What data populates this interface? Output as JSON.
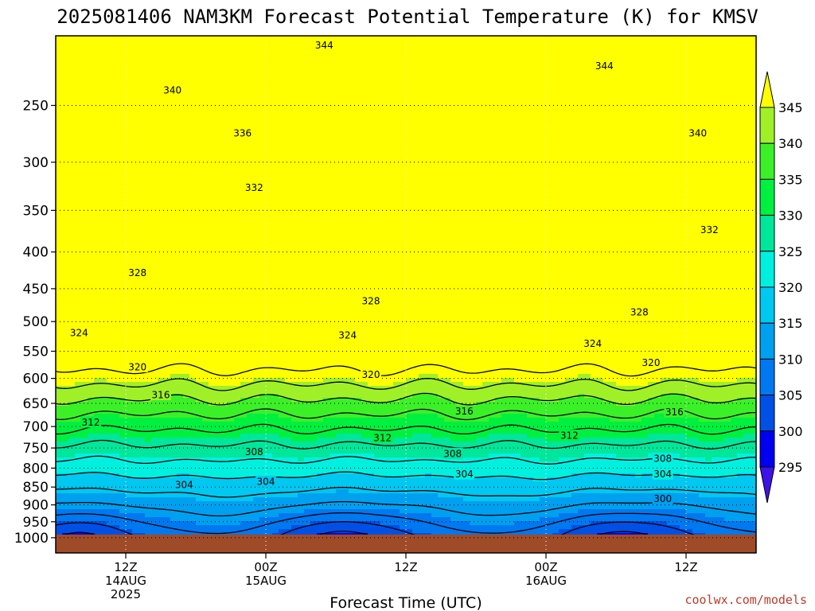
{
  "chart_data": {
    "type": "heatmap",
    "title": "2025081406 NAM3KM Forecast Potential Temperature (K) for KMSV",
    "xlabel": "Forecast Time (UTC)",
    "ylabel": "",
    "credit": "coolwx.com/models",
    "x_ticks": [
      {
        "line1": "12Z",
        "line2": "14AUG",
        "line3": "2025",
        "hour": 6
      },
      {
        "line1": "00Z",
        "line2": "15AUG",
        "line3": "",
        "hour": 18
      },
      {
        "line1": "12Z",
        "line2": "",
        "line3": "",
        "hour": 30
      },
      {
        "line1": "00Z",
        "line2": "16AUG",
        "line3": "",
        "hour": 42
      },
      {
        "line1": "12Z",
        "line2": "",
        "line3": "",
        "hour": 54
      }
    ],
    "xlim": [
      0,
      60
    ],
    "y_ticks": [
      250,
      300,
      350,
      400,
      450,
      500,
      550,
      600,
      650,
      700,
      750,
      800,
      850,
      900,
      950,
      1000
    ],
    "ylim": [
      1050,
      200
    ],
    "y_scale": "log",
    "colorbar": {
      "ticks": [
        345,
        340,
        335,
        330,
        325,
        320,
        315,
        310,
        305,
        300,
        295
      ],
      "levels": [
        290,
        295,
        300,
        305,
        310,
        315,
        320,
        325,
        330,
        335,
        340,
        345,
        350
      ],
      "colors": [
        "#3c14e6",
        "#0000f0",
        "#0050e6",
        "#0078f0",
        "#00a0f0",
        "#00c8f0",
        "#00f0e0",
        "#00e69a",
        "#00f040",
        "#3cf028",
        "#a0f028",
        "#ffff00"
      ]
    },
    "ground_color": "#a04b28",
    "ground_pressure": 990,
    "contour_interval": 4,
    "contour_labels": [
      {
        "value": "344",
        "hour": 23,
        "p": 206
      },
      {
        "value": "344",
        "hour": 47,
        "p": 220
      },
      {
        "value": "340",
        "hour": 10,
        "p": 238
      },
      {
        "value": "340",
        "hour": 55,
        "p": 273
      },
      {
        "value": "336",
        "hour": 16,
        "p": 273
      },
      {
        "value": "332",
        "hour": 17,
        "p": 325
      },
      {
        "value": "332",
        "hour": 56,
        "p": 372
      },
      {
        "value": "328",
        "hour": 7,
        "p": 427
      },
      {
        "value": "328",
        "hour": 27,
        "p": 468
      },
      {
        "value": "328",
        "hour": 50,
        "p": 485
      },
      {
        "value": "324",
        "hour": 2,
        "p": 518
      },
      {
        "value": "324",
        "hour": 25,
        "p": 522
      },
      {
        "value": "324",
        "hour": 46,
        "p": 536
      },
      {
        "value": "320",
        "hour": 7,
        "p": 578
      },
      {
        "value": "320",
        "hour": 27,
        "p": 592
      },
      {
        "value": "320",
        "hour": 51,
        "p": 570
      },
      {
        "value": "316",
        "hour": 9,
        "p": 632
      },
      {
        "value": "316",
        "hour": 35,
        "p": 666
      },
      {
        "value": "316",
        "hour": 53,
        "p": 668
      },
      {
        "value": "312",
        "hour": 3,
        "p": 690
      },
      {
        "value": "312",
        "hour": 28,
        "p": 725
      },
      {
        "value": "312",
        "hour": 44,
        "p": 720
      },
      {
        "value": "308",
        "hour": 17,
        "p": 758
      },
      {
        "value": "308",
        "hour": 34,
        "p": 763
      },
      {
        "value": "308",
        "hour": 52,
        "p": 775
      },
      {
        "value": "304",
        "hour": 11,
        "p": 843
      },
      {
        "value": "304",
        "hour": 18,
        "p": 835
      },
      {
        "value": "304",
        "hour": 35,
        "p": 815
      },
      {
        "value": "304",
        "hour": 52,
        "p": 815
      },
      {
        "value": "300",
        "hour": 52,
        "p": 882
      }
    ]
  }
}
